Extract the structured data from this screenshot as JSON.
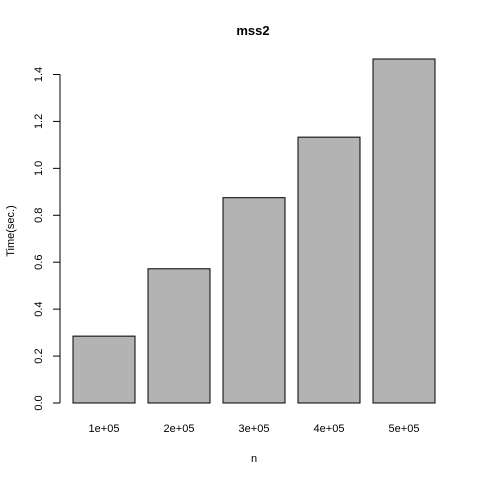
{
  "chart_data": {
    "type": "bar",
    "title": "mss2",
    "xlabel": "n",
    "ylabel": "Time(sec.)",
    "categories": [
      "1e+05",
      "2e+05",
      "3e+05",
      "4e+05",
      "5e+05"
    ],
    "values": [
      0.285,
      0.572,
      0.875,
      1.133,
      1.466
    ],
    "yticks": [
      0.0,
      0.2,
      0.4,
      0.6,
      0.8,
      1.0,
      1.2,
      1.4
    ],
    "ytick_labels": [
      "0.0",
      "0.2",
      "0.4",
      "0.6",
      "0.8",
      "1.0",
      "1.2",
      "1.4"
    ],
    "ylim": [
      0,
      1.466
    ],
    "bar_color": "#b3b3b3",
    "grid": false,
    "legend": "none"
  }
}
